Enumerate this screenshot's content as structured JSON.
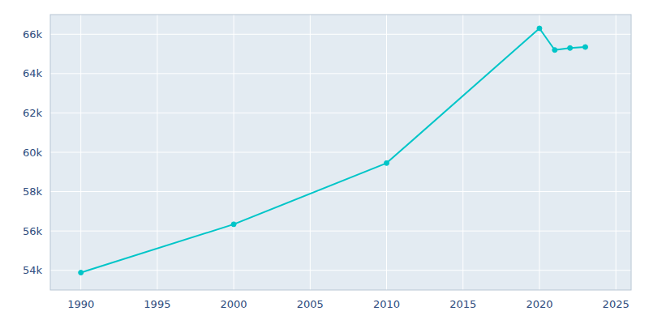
{
  "chart_data": {
    "type": "line",
    "x": [
      1990,
      2000,
      2010,
      2020,
      2021,
      2022,
      2023
    ],
    "values": [
      53884,
      56340,
      59450,
      66300,
      65200,
      65300,
      65350
    ],
    "color": "#00C5C8",
    "marker": "circle",
    "xlim": [
      1988,
      2026
    ],
    "xticks": [
      1990,
      1995,
      2000,
      2005,
      2010,
      2015,
      2020,
      2025
    ],
    "ylim": [
      53000,
      67000
    ],
    "yticks": [
      {
        "value": 54000,
        "label": "54k"
      },
      {
        "value": 56000,
        "label": "56k"
      },
      {
        "value": 58000,
        "label": "58k"
      },
      {
        "value": 60000,
        "label": "60k"
      },
      {
        "value": 62000,
        "label": "62k"
      },
      {
        "value": 64000,
        "label": "64k"
      },
      {
        "value": 66000,
        "label": "66k"
      }
    ],
    "grid": true
  }
}
